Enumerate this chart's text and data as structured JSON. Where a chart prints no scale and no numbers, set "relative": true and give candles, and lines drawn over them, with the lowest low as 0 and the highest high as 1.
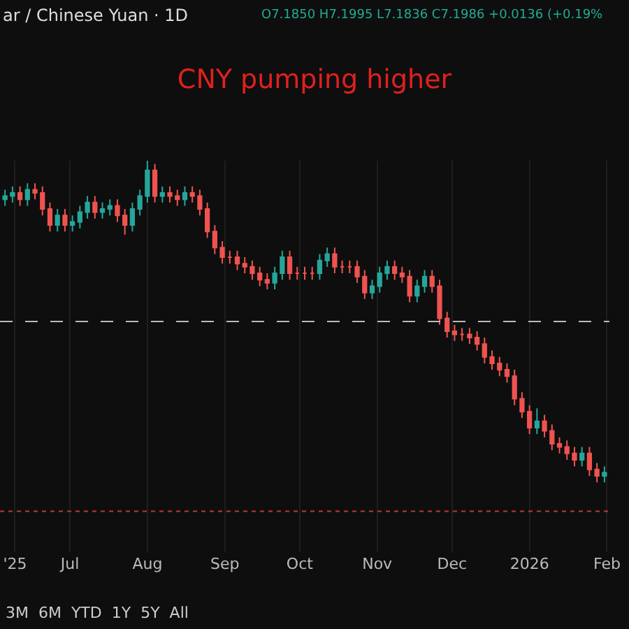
{
  "chart_data": {
    "type": "candlestick",
    "relative": true,
    "title": "CNY pumping higher",
    "annotations": [
      "ar / Chinese Yuan · 1D",
      "O7.1850 H7.1995 L7.1836 C7.1986 +0.0136 (+0.19%",
      "3M  6M  YTD  1Y  5Y  All"
    ],
    "x": [
      "2025-06-05",
      "2025-06-08",
      "2025-06-11",
      "2025-06-14",
      "2025-06-17",
      "2025-06-20",
      "2025-06-23",
      "2025-06-26",
      "2025-06-29",
      "2025-07-02",
      "2025-07-05",
      "2025-07-08",
      "2025-07-11",
      "2025-07-14",
      "2025-07-17",
      "2025-07-20",
      "2025-07-23",
      "2025-07-26",
      "2025-07-29",
      "2025-08-01",
      "2025-08-04",
      "2025-08-07",
      "2025-08-10",
      "2025-08-13",
      "2025-08-16",
      "2025-08-19",
      "2025-08-22",
      "2025-08-25",
      "2025-08-28",
      "2025-08-31",
      "2025-09-03",
      "2025-09-06",
      "2025-09-09",
      "2025-09-12",
      "2025-09-15",
      "2025-09-18",
      "2025-09-21",
      "2025-09-24",
      "2025-09-27",
      "2025-09-30",
      "2025-10-03",
      "2025-10-06",
      "2025-10-09",
      "2025-10-12",
      "2025-10-15",
      "2025-10-18",
      "2025-10-21",
      "2025-10-24",
      "2025-10-27",
      "2025-10-30",
      "2025-11-02",
      "2025-11-05",
      "2025-11-08",
      "2025-11-11",
      "2025-11-14",
      "2025-11-17",
      "2025-11-20",
      "2025-11-23",
      "2025-11-26",
      "2025-11-29",
      "2025-12-02",
      "2025-12-05",
      "2025-12-08",
      "2025-12-11",
      "2025-12-14",
      "2025-12-17",
      "2025-12-20",
      "2025-12-23",
      "2025-12-26",
      "2025-12-29",
      "2026-01-01",
      "2026-01-04",
      "2026-01-07",
      "2026-01-10",
      "2026-01-13",
      "2026-01-16",
      "2026-01-19",
      "2026-01-22",
      "2026-01-25",
      "2026-01-28",
      "2026-01-31"
    ],
    "ohlc": [
      [
        0.88,
        0.91,
        0.86,
        0.89
      ],
      [
        0.89,
        0.92,
        0.87,
        0.9
      ],
      [
        0.9,
        0.92,
        0.86,
        0.88
      ],
      [
        0.88,
        0.93,
        0.86,
        0.91
      ],
      [
        0.91,
        0.93,
        0.88,
        0.9
      ],
      [
        0.9,
        0.92,
        0.83,
        0.85
      ],
      [
        0.85,
        0.87,
        0.78,
        0.8
      ],
      [
        0.8,
        0.85,
        0.78,
        0.83
      ],
      [
        0.83,
        0.85,
        0.78,
        0.8
      ],
      [
        0.8,
        0.83,
        0.78,
        0.81
      ],
      [
        0.81,
        0.86,
        0.79,
        0.84
      ],
      [
        0.84,
        0.89,
        0.82,
        0.87
      ],
      [
        0.87,
        0.89,
        0.82,
        0.84
      ],
      [
        0.84,
        0.87,
        0.82,
        0.85
      ],
      [
        0.85,
        0.88,
        0.83,
        0.86
      ],
      [
        0.86,
        0.88,
        0.81,
        0.83
      ],
      [
        0.83,
        0.85,
        0.77,
        0.8
      ],
      [
        0.8,
        0.87,
        0.78,
        0.85
      ],
      [
        0.85,
        0.91,
        0.83,
        0.89
      ],
      [
        0.89,
        1.0,
        0.87,
        0.97
      ],
      [
        0.97,
        0.99,
        0.87,
        0.89
      ],
      [
        0.89,
        0.92,
        0.87,
        0.9
      ],
      [
        0.9,
        0.92,
        0.87,
        0.89
      ],
      [
        0.89,
        0.91,
        0.86,
        0.88
      ],
      [
        0.88,
        0.92,
        0.86,
        0.9
      ],
      [
        0.9,
        0.92,
        0.87,
        0.89
      ],
      [
        0.89,
        0.91,
        0.83,
        0.85
      ],
      [
        0.85,
        0.87,
        0.76,
        0.78
      ],
      [
        0.78,
        0.8,
        0.71,
        0.73
      ],
      [
        0.73,
        0.75,
        0.68,
        0.7
      ],
      [
        0.7,
        0.72,
        0.68,
        0.7
      ],
      [
        0.7,
        0.72,
        0.66,
        0.68
      ],
      [
        0.68,
        0.7,
        0.65,
        0.67
      ],
      [
        0.67,
        0.69,
        0.63,
        0.65
      ],
      [
        0.65,
        0.67,
        0.61,
        0.63
      ],
      [
        0.63,
        0.65,
        0.6,
        0.62
      ],
      [
        0.62,
        0.67,
        0.6,
        0.65
      ],
      [
        0.65,
        0.72,
        0.63,
        0.7
      ],
      [
        0.7,
        0.72,
        0.63,
        0.65
      ],
      [
        0.65,
        0.67,
        0.63,
        0.65
      ],
      [
        0.65,
        0.67,
        0.63,
        0.65
      ],
      [
        0.65,
        0.67,
        0.63,
        0.65
      ],
      [
        0.65,
        0.71,
        0.63,
        0.69
      ],
      [
        0.69,
        0.73,
        0.67,
        0.71
      ],
      [
        0.71,
        0.73,
        0.65,
        0.67
      ],
      [
        0.67,
        0.69,
        0.65,
        0.67
      ],
      [
        0.67,
        0.69,
        0.65,
        0.67
      ],
      [
        0.67,
        0.69,
        0.62,
        0.64
      ],
      [
        0.64,
        0.66,
        0.57,
        0.59
      ],
      [
        0.59,
        0.63,
        0.57,
        0.61
      ],
      [
        0.61,
        0.67,
        0.59,
        0.65
      ],
      [
        0.65,
        0.69,
        0.63,
        0.67
      ],
      [
        0.67,
        0.69,
        0.63,
        0.65
      ],
      [
        0.65,
        0.67,
        0.62,
        0.64
      ],
      [
        0.64,
        0.66,
        0.56,
        0.58
      ],
      [
        0.58,
        0.63,
        0.56,
        0.61
      ],
      [
        0.61,
        0.66,
        0.59,
        0.64
      ],
      [
        0.64,
        0.66,
        0.59,
        0.61
      ],
      [
        0.61,
        0.63,
        0.49,
        0.51
      ],
      [
        0.51,
        0.53,
        0.45,
        0.47
      ],
      [
        0.47,
        0.49,
        0.44,
        0.46
      ],
      [
        0.46,
        0.48,
        0.44,
        0.46
      ],
      [
        0.46,
        0.48,
        0.43,
        0.45
      ],
      [
        0.45,
        0.47,
        0.41,
        0.43
      ],
      [
        0.43,
        0.45,
        0.37,
        0.39
      ],
      [
        0.39,
        0.41,
        0.35,
        0.37
      ],
      [
        0.37,
        0.39,
        0.33,
        0.35
      ],
      [
        0.35,
        0.37,
        0.31,
        0.33
      ],
      [
        0.33,
        0.35,
        0.24,
        0.26
      ],
      [
        0.26,
        0.28,
        0.2,
        0.22
      ],
      [
        0.22,
        0.24,
        0.15,
        0.17
      ],
      [
        0.17,
        0.23,
        0.15,
        0.19
      ],
      [
        0.19,
        0.21,
        0.14,
        0.16
      ],
      [
        0.16,
        0.18,
        0.1,
        0.12
      ],
      [
        0.12,
        0.14,
        0.09,
        0.11
      ],
      [
        0.11,
        0.13,
        0.07,
        0.09
      ],
      [
        0.09,
        0.11,
        0.05,
        0.07
      ],
      [
        0.07,
        0.11,
        0.05,
        0.09
      ],
      [
        0.09,
        0.11,
        0.02,
        0.04
      ],
      [
        0.04,
        0.06,
        0.0,
        0.02
      ],
      [
        0.02,
        0.05,
        0.0,
        0.03
      ]
    ],
    "colors": [
      "#26a69a",
      "#26a69a",
      "#ef5350",
      "#26a69a",
      "#ef5350",
      "#ef5350",
      "#ef5350",
      "#26a69a",
      "#ef5350",
      "#26a69a",
      "#26a69a",
      "#26a69a",
      "#ef5350",
      "#26a69a",
      "#26a69a",
      "#ef5350",
      "#ef5350",
      "#26a69a",
      "#26a69a",
      "#26a69a",
      "#ef5350",
      "#26a69a",
      "#ef5350",
      "#ef5350",
      "#26a69a",
      "#ef5350",
      "#ef5350",
      "#ef5350",
      "#ef5350",
      "#ef5350",
      "#ef5350",
      "#ef5350",
      "#ef5350",
      "#ef5350",
      "#ef5350",
      "#ef5350",
      "#26a69a",
      "#26a69a",
      "#ef5350",
      "#ef5350",
      "#ef5350",
      "#ef5350",
      "#26a69a",
      "#26a69a",
      "#ef5350",
      "#ef5350",
      "#ef5350",
      "#ef5350",
      "#ef5350",
      "#26a69a",
      "#26a69a",
      "#26a69a",
      "#ef5350",
      "#ef5350",
      "#ef5350",
      "#26a69a",
      "#26a69a",
      "#ef5350",
      "#ef5350",
      "#ef5350",
      "#ef5350",
      "#ef5350",
      "#ef5350",
      "#ef5350",
      "#ef5350",
      "#ef5350",
      "#ef5350",
      "#ef5350",
      "#ef5350",
      "#ef5350",
      "#ef5350",
      "#26a69a",
      "#ef5350",
      "#ef5350",
      "#ef5350",
      "#ef5350",
      "#ef5350",
      "#26a69a",
      "#ef5350",
      "#ef5350",
      "#26a69a"
    ],
    "xlim": [
      "2025-06-03",
      "2026-02-02"
    ],
    "xticks": [
      {
        "value": "2025-06-09",
        "label": "'25"
      },
      {
        "value": "2025-07-01",
        "label": "Jul"
      },
      {
        "value": "2025-08-01",
        "label": "Aug"
      },
      {
        "value": "2025-09-01",
        "label": "Sep"
      },
      {
        "value": "2025-10-01",
        "label": "Oct"
      },
      {
        "value": "2025-11-01",
        "label": "Nov"
      },
      {
        "value": "2025-12-01",
        "label": "Dec"
      },
      {
        "value": "2026-01-01",
        "label": "2026"
      },
      {
        "value": "2026-02-01",
        "label": "Feb"
      }
    ],
    "ref_lines": [
      {
        "axis": "y",
        "value": 0.5,
        "color": "#bbbbbb",
        "line_style": "dashed"
      },
      {
        "axis": "y",
        "value": -0.09,
        "color": "#c0392b",
        "line_style": "dotted"
      }
    ],
    "grid": "x"
  }
}
